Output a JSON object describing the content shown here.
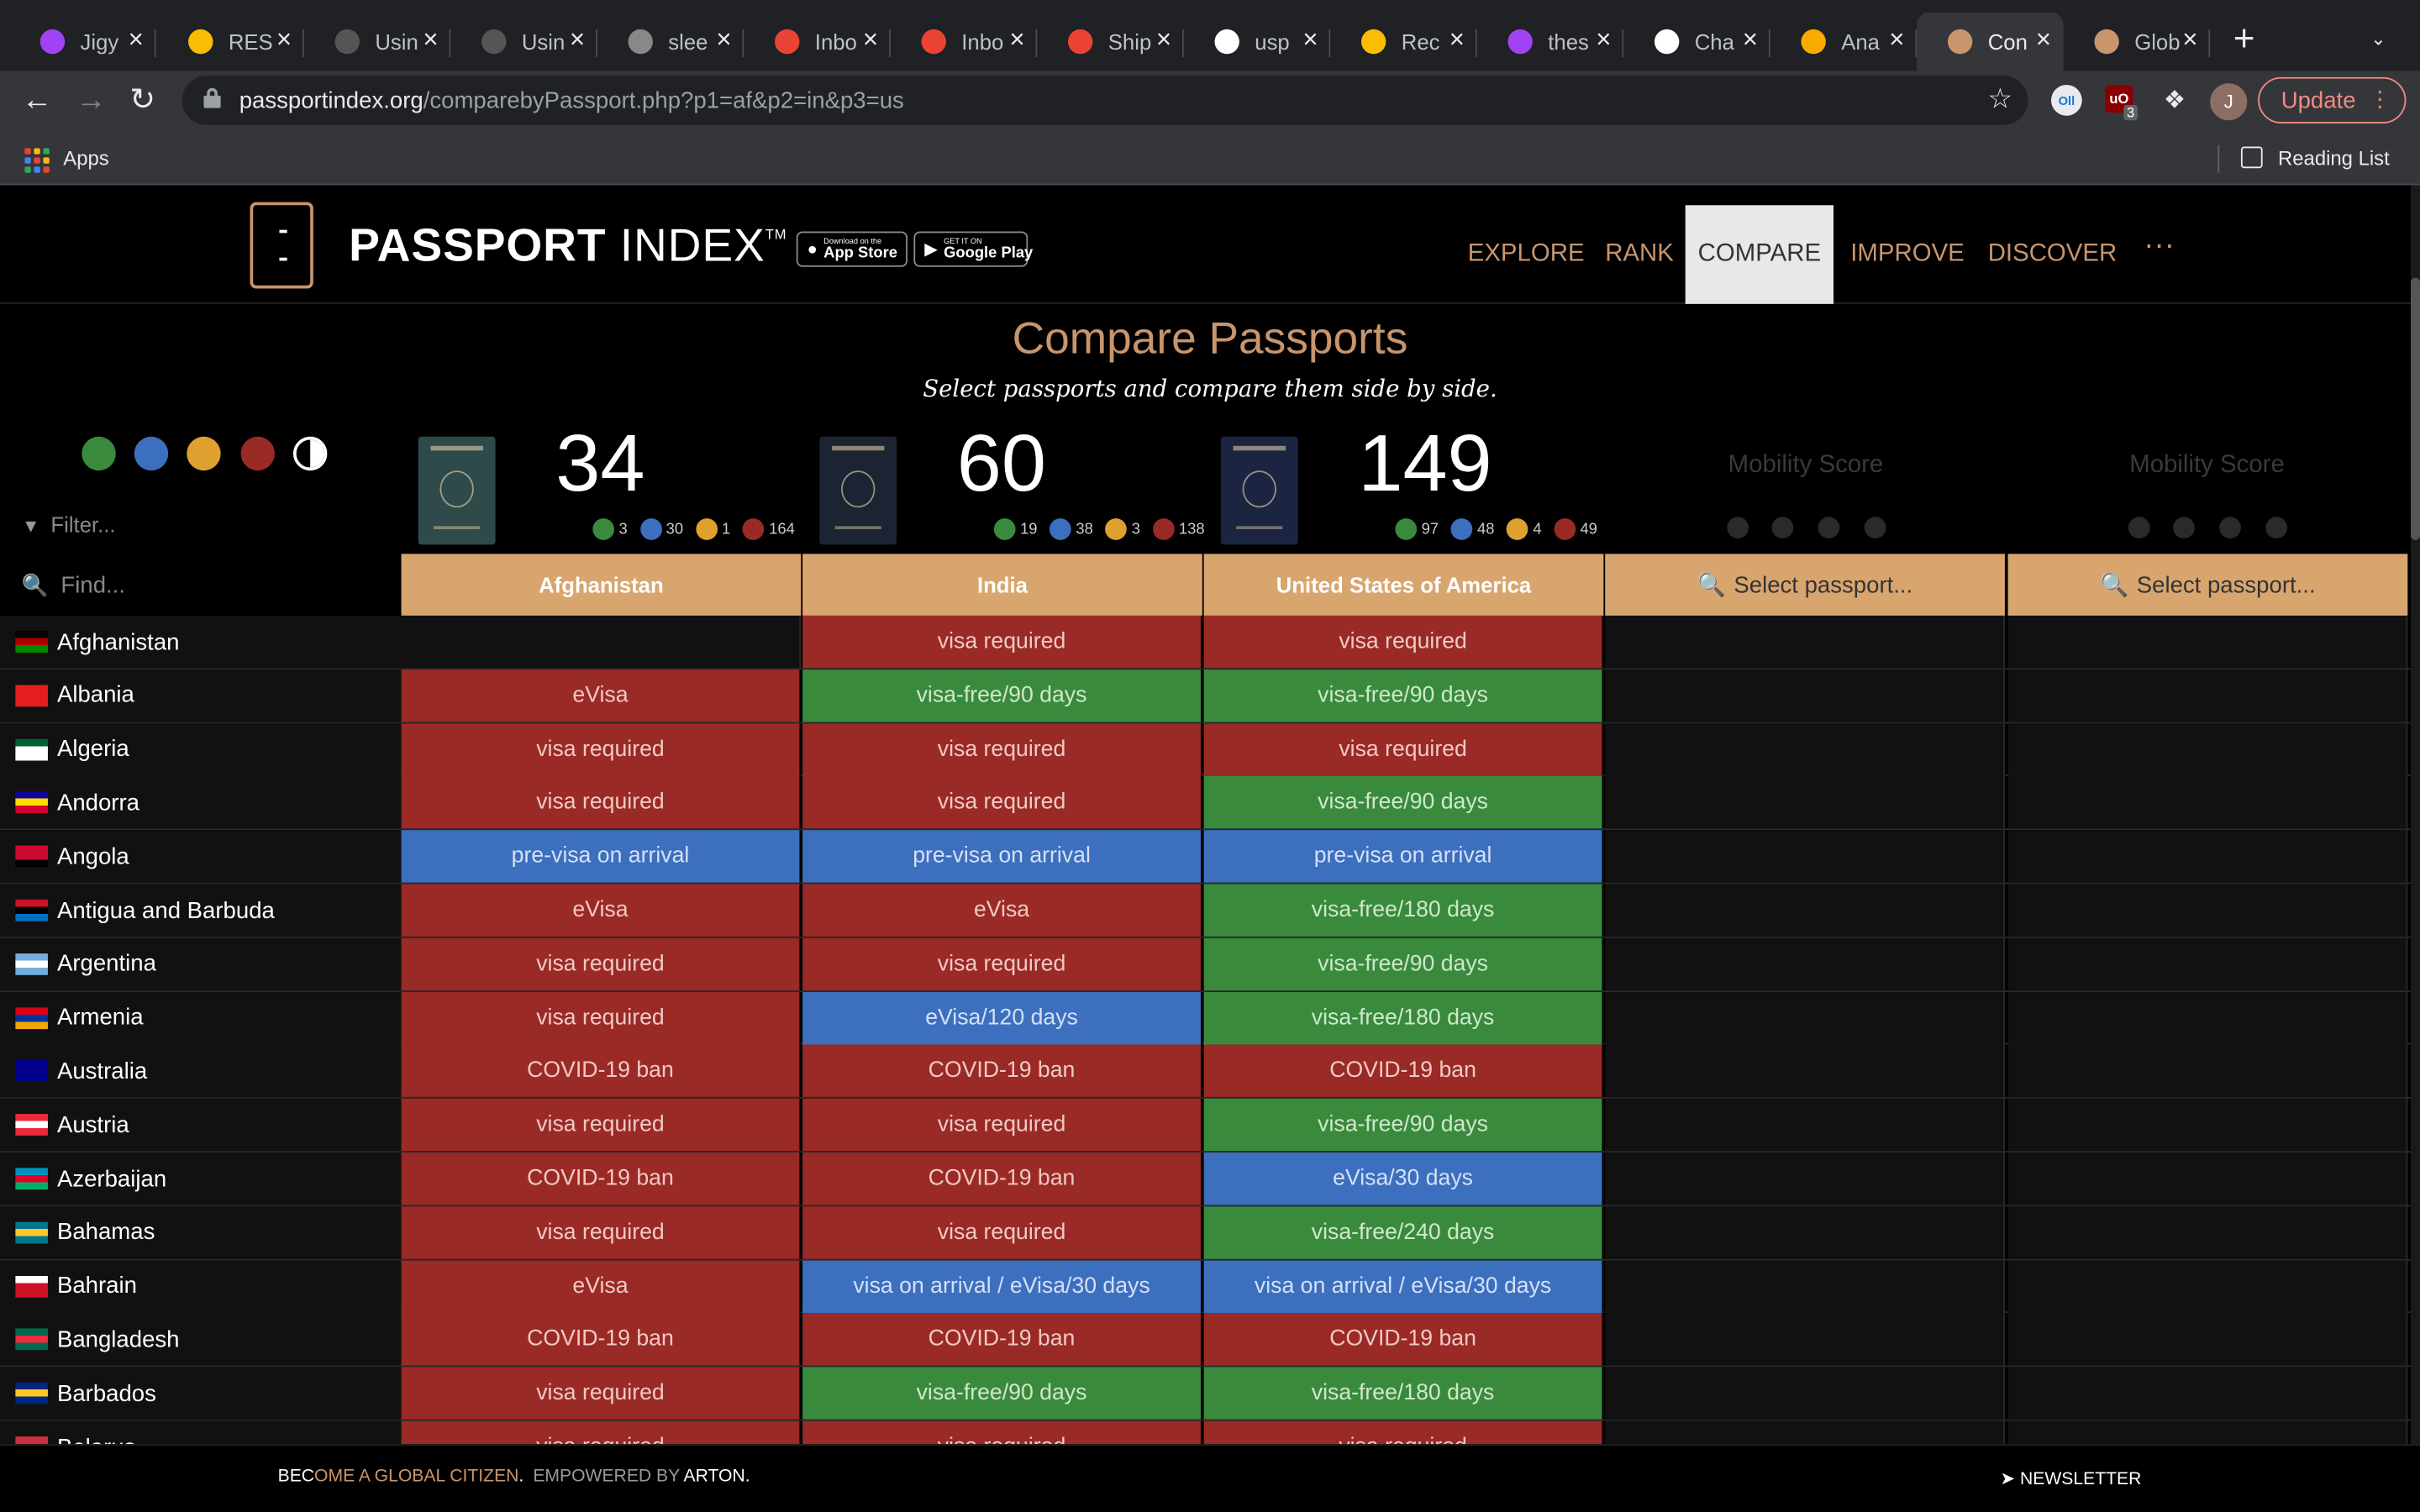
{
  "browser": {
    "tabs": [
      {
        "title": "Jigy",
        "fav": "#a142f4",
        "icon": "circle-icon"
      },
      {
        "title": "RESI",
        "fav": "#fbbc04",
        "icon": "drive-icon"
      },
      {
        "title": "Usin",
        "fav": "#555",
        "icon": "bolt-icon"
      },
      {
        "title": "Usin",
        "fav": "#555",
        "icon": "bolt-icon"
      },
      {
        "title": "slee",
        "fav": "#888",
        "icon": "globe-icon"
      },
      {
        "title": "Inbo",
        "fav": "#ea4335",
        "icon": "gmail-icon"
      },
      {
        "title": "Inbo",
        "fav": "#ea4335",
        "icon": "gmail-icon"
      },
      {
        "title": "Ship",
        "fav": "#ea4335",
        "icon": "gmail-icon"
      },
      {
        "title": "usp",
        "fav": "#fff",
        "icon": "google-icon"
      },
      {
        "title": "Rec",
        "fav": "#fbbc04",
        "icon": "drive-icon"
      },
      {
        "title": "thes",
        "fav": "#a142f4",
        "icon": "circle-icon"
      },
      {
        "title": "Cha",
        "fav": "#fff",
        "icon": "square-icon"
      },
      {
        "title": "Ana",
        "fav": "#f9ab00",
        "icon": "analytics-icon"
      },
      {
        "title": "Con",
        "fav": "#c8956c",
        "icon": "passport-index-icon",
        "active": true
      },
      {
        "title": "Glob",
        "fav": "#c8956c",
        "icon": "passport-index-icon"
      }
    ],
    "url_host": "passportindex.org",
    "url_path": "/comparebyPassport.php?p1=af&p2=in&p3=us",
    "apps_label": "Apps",
    "reading_list_label": "Reading List",
    "update_label": "Update",
    "avatar_initial": "J",
    "ext_badge": "3"
  },
  "site": {
    "logo_bold": "PASSPORT",
    "logo_rest": " INDEX",
    "logo_tm": "TM",
    "appstore_small": "Download on the",
    "appstore_big": "App Store",
    "gplay_small": "GET IT ON",
    "gplay_big": "Google Play",
    "nav": [
      "EXPLORE",
      "RANK",
      "COMPARE",
      "IMPROVE",
      "DISCOVER"
    ],
    "nav_active": "COMPARE",
    "more": "···"
  },
  "compare": {
    "title": "Compare Passports",
    "subtitle": "Select passports and compare them side by side.",
    "filter_placeholder": "Filter...",
    "find_placeholder": "Find...",
    "mobility_label": "Mobility Score",
    "select_label": "Select passport...",
    "colors": {
      "visa_free": "#3a8a3e",
      "visa_on_arrival": "#3d6fbf",
      "eta": "#e0a030",
      "visa_required": "#9a2a26"
    },
    "passports": [
      {
        "name": "Afghanistan",
        "score": "34",
        "counts": [
          "3",
          "30",
          "1",
          "164"
        ],
        "cover": "#2e4a4a"
      },
      {
        "name": "India",
        "score": "60",
        "counts": [
          "19",
          "38",
          "3",
          "138"
        ],
        "cover": "#1c2433"
      },
      {
        "name": "United States of America",
        "score": "149",
        "counts": [
          "97",
          "48",
          "4",
          "49"
        ],
        "cover": "#1b2440"
      }
    ]
  },
  "rows": [
    {
      "country": "Afghanistan",
      "flag": [
        "#000",
        "#a00",
        "#080"
      ],
      "v": [
        "",
        "visa required",
        "visa required"
      ],
      "k": [
        "",
        "r",
        "r"
      ]
    },
    {
      "country": "Albania",
      "flag": [
        "#e41e20",
        "#e41e20",
        "#e41e20"
      ],
      "v": [
        "eVisa",
        "visa-free/90 days",
        "visa-free/90 days"
      ],
      "k": [
        "r",
        "g",
        "g"
      ]
    },
    {
      "country": "Algeria",
      "flag": [
        "#006233",
        "#fff",
        "#fff"
      ],
      "v": [
        "visa required",
        "visa required",
        "visa required"
      ],
      "k": [
        "r",
        "r",
        "r"
      ]
    },
    {
      "country": "Andorra",
      "flag": [
        "#10069f",
        "#fedd00",
        "#d50032"
      ],
      "v": [
        "visa required",
        "visa required",
        "visa-free/90 days"
      ],
      "k": [
        "r",
        "r",
        "g"
      ]
    },
    {
      "country": "Angola",
      "flag": [
        "#cc092f",
        "#cc092f",
        "#000"
      ],
      "v": [
        "pre-visa on arrival",
        "pre-visa on arrival",
        "pre-visa on arrival"
      ],
      "k": [
        "b",
        "b",
        "b"
      ]
    },
    {
      "country": "Antigua and Barbuda",
      "flag": [
        "#ce1126",
        "#000",
        "#0072c6"
      ],
      "v": [
        "eVisa",
        "eVisa",
        "visa-free/180 days"
      ],
      "k": [
        "r",
        "r",
        "g"
      ]
    },
    {
      "country": "Argentina",
      "flag": [
        "#74acdf",
        "#fff",
        "#74acdf"
      ],
      "v": [
        "visa required",
        "visa required",
        "visa-free/90 days"
      ],
      "k": [
        "r",
        "r",
        "g"
      ]
    },
    {
      "country": "Armenia",
      "flag": [
        "#d90012",
        "#0033a0",
        "#f2a800"
      ],
      "v": [
        "visa required",
        "eVisa/120 days",
        "visa-free/180 days"
      ],
      "k": [
        "r",
        "b",
        "g"
      ]
    },
    {
      "country": "Australia",
      "flag": [
        "#00008b",
        "#00008b",
        "#00008b"
      ],
      "v": [
        "COVID-19 ban",
        "COVID-19 ban",
        "COVID-19 ban"
      ],
      "k": [
        "r",
        "r",
        "r"
      ]
    },
    {
      "country": "Austria",
      "flag": [
        "#ed2939",
        "#fff",
        "#ed2939"
      ],
      "v": [
        "visa required",
        "visa required",
        "visa-free/90 days"
      ],
      "k": [
        "r",
        "r",
        "g"
      ]
    },
    {
      "country": "Azerbaijan",
      "flag": [
        "#0092bc",
        "#e4002b",
        "#00af66"
      ],
      "v": [
        "COVID-19 ban",
        "COVID-19 ban",
        "eVisa/30 days"
      ],
      "k": [
        "r",
        "r",
        "b"
      ]
    },
    {
      "country": "Bahamas",
      "flag": [
        "#00778b",
        "#ffc72c",
        "#00778b"
      ],
      "v": [
        "visa required",
        "visa required",
        "visa-free/240 days"
      ],
      "k": [
        "r",
        "r",
        "g"
      ]
    },
    {
      "country": "Bahrain",
      "flag": [
        "#fff",
        "#ce1126",
        "#ce1126"
      ],
      "v": [
        "eVisa",
        "visa on arrival / eVisa/30 days",
        "visa on arrival / eVisa/30 days"
      ],
      "k": [
        "r",
        "b",
        "b"
      ]
    },
    {
      "country": "Bangladesh",
      "flag": [
        "#006a4e",
        "#f42a41",
        "#006a4e"
      ],
      "v": [
        "COVID-19 ban",
        "COVID-19 ban",
        "COVID-19 ban"
      ],
      "k": [
        "r",
        "r",
        "r"
      ]
    },
    {
      "country": "Barbados",
      "flag": [
        "#00267f",
        "#ffc726",
        "#00267f"
      ],
      "v": [
        "visa required",
        "visa-free/90 days",
        "visa-free/180 days"
      ],
      "k": [
        "r",
        "g",
        "g"
      ]
    },
    {
      "country": "Belarus",
      "flag": [
        "#c8313e",
        "#c8313e",
        "#4aa657"
      ],
      "v": [
        "visa required",
        "visa required",
        "visa required"
      ],
      "k": [
        "r",
        "r",
        "r"
      ]
    }
  ],
  "footer": {
    "become_a": "BEC",
    "become_b": "OME A GLOBAL CITIZEN",
    "dot": ".",
    "powered": "EMPOWERED BY",
    "arton": "ARTON.",
    "newsletter": "NEWSLETTER"
  }
}
